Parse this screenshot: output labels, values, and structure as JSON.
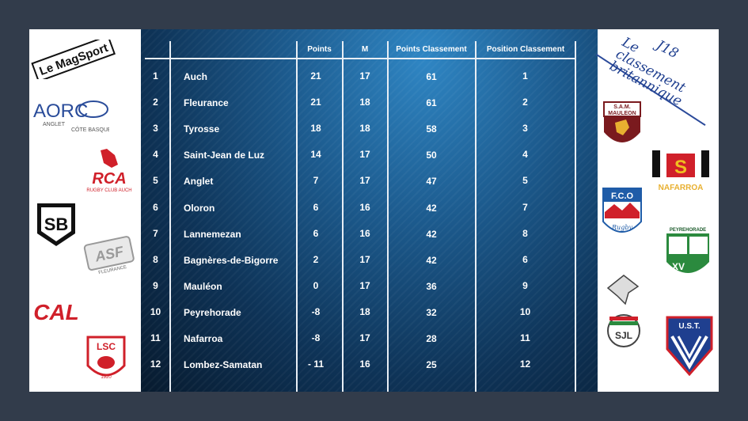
{
  "brand": {
    "logo_text": "Le MagSport"
  },
  "header": {
    "title_line1": "J18",
    "title_line2": "Le classement britannique"
  },
  "table": {
    "columns": [
      "",
      "",
      "Points",
      "M",
      "Points Classement",
      "Position Classement"
    ],
    "rows": [
      {
        "rank": "1",
        "team": "Auch",
        "points": "21",
        "m": "17",
        "points_classement": "61",
        "position": "1"
      },
      {
        "rank": "2",
        "team": "Fleurance",
        "points": "21",
        "m": "18",
        "points_classement": "61",
        "position": "2"
      },
      {
        "rank": "3",
        "team": "Tyrosse",
        "points": "18",
        "m": "18",
        "points_classement": "58",
        "position": "3"
      },
      {
        "rank": "4",
        "team": "Saint-Jean de Luz",
        "points": "14",
        "m": "17",
        "points_classement": "50",
        "position": "4"
      },
      {
        "rank": "5",
        "team": "Anglet",
        "points": "7",
        "m": "17",
        "points_classement": "47",
        "position": "5"
      },
      {
        "rank": "6",
        "team": "Oloron",
        "points": "6",
        "m": "16",
        "points_classement": "42",
        "position": "7"
      },
      {
        "rank": "7",
        "team": "Lannemezan",
        "points": "6",
        "m": "16",
        "points_classement": "42",
        "position": "8"
      },
      {
        "rank": "8",
        "team": "Bagnères-de-Bigorre",
        "points": "2",
        "m": "17",
        "points_classement": "42",
        "position": "6"
      },
      {
        "rank": "9",
        "team": "Mauléon",
        "points": "0",
        "m": "17",
        "points_classement": "36",
        "position": "9"
      },
      {
        "rank": "10",
        "team": "Peyrehorade",
        "points": "-8",
        "m": "18",
        "points_classement": "32",
        "position": "10"
      },
      {
        "rank": "11",
        "team": "Nafarroa",
        "points": "-8",
        "m": "17",
        "points_classement": "28",
        "position": "11"
      },
      {
        "rank": "12",
        "team": "Lombez-Samatan",
        "points": "- 11",
        "m": "16",
        "points_classement": "25",
        "position": "12"
      }
    ]
  },
  "club_logos_left": [
    {
      "icon": "aorc-logo",
      "text": "AORC",
      "sub1": "ANGLET",
      "sub2": "CÔTE BASQUE"
    },
    {
      "icon": "rca-logo",
      "text": "RCA",
      "sub1": "RUGBY CLUB AUCH"
    },
    {
      "icon": "sb-logo",
      "text": "SB"
    },
    {
      "icon": "asf-logo",
      "text": "ASF",
      "sub1": "FLEURANCE"
    },
    {
      "icon": "cal-logo",
      "text": "CAL"
    },
    {
      "icon": "lsc-logo",
      "text": "LSC",
      "sub1": "1920"
    }
  ],
  "club_logos_right": [
    {
      "icon": "sam-mauleon-logo",
      "text": "S.A.M.",
      "sub1": "MAULEON"
    },
    {
      "icon": "nafarroa-logo",
      "text": "NAFARROA"
    },
    {
      "icon": "fco-logo",
      "text": "F.C.O",
      "sub1": "Rugby"
    },
    {
      "icon": "peyrehorade-logo",
      "text": "PEYREHORADE",
      "sub1": "XV"
    },
    {
      "icon": "sjl-logo",
      "text": "SJL"
    },
    {
      "icon": "ust-logo",
      "text": "U.S.T."
    }
  ],
  "colors": {
    "board_dark": "#071a2e",
    "board_light": "#2f86c4",
    "frame_bg": "#323c4b",
    "title_blue": "#1f3f8f",
    "red": "#d0202a"
  }
}
